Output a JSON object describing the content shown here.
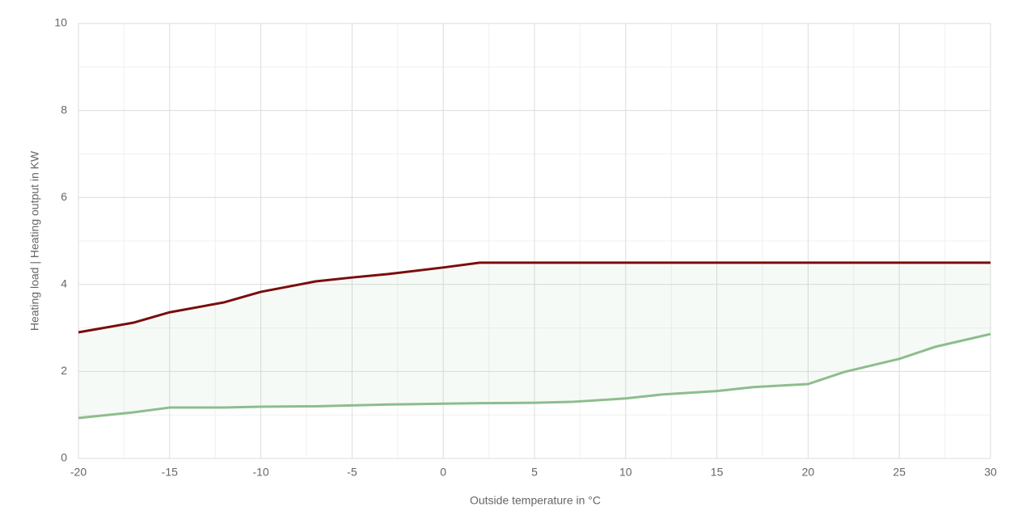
{
  "chart_data": {
    "type": "line",
    "x_label": "Outside temperature in °C",
    "y_label": "Heating load | Heating output in KW",
    "x": [
      -20,
      -17,
      -15,
      -12,
      -10,
      -7,
      -5,
      -3,
      0,
      2,
      5,
      7,
      10,
      12,
      15,
      17,
      20,
      22,
      25,
      27,
      30
    ],
    "series": [
      {
        "color": "#7b0c0c",
        "values": [
          2.9,
          3.12,
          3.36,
          3.59,
          3.83,
          4.07,
          4.16,
          4.24,
          4.39,
          4.5,
          4.5,
          4.5,
          4.5,
          4.5,
          4.5,
          4.5,
          4.5,
          4.5,
          4.5,
          4.5,
          4.5
        ]
      },
      {
        "color": "#8dbd8d",
        "values": [
          0.93,
          1.06,
          1.17,
          1.17,
          1.19,
          1.2,
          1.22,
          1.24,
          1.26,
          1.27,
          1.28,
          1.3,
          1.38,
          1.47,
          1.55,
          1.64,
          1.71,
          1.99,
          2.29,
          2.57,
          2.86
        ]
      }
    ],
    "fill_between": true,
    "xlim": [
      -20,
      30
    ],
    "xticks": [
      -20,
      -15,
      -10,
      -5,
      0,
      5,
      10,
      15,
      20,
      25,
      30
    ],
    "ylim": [
      0,
      10
    ],
    "yticks": [
      0,
      2,
      4,
      6,
      8,
      10
    ],
    "grid": true
  }
}
